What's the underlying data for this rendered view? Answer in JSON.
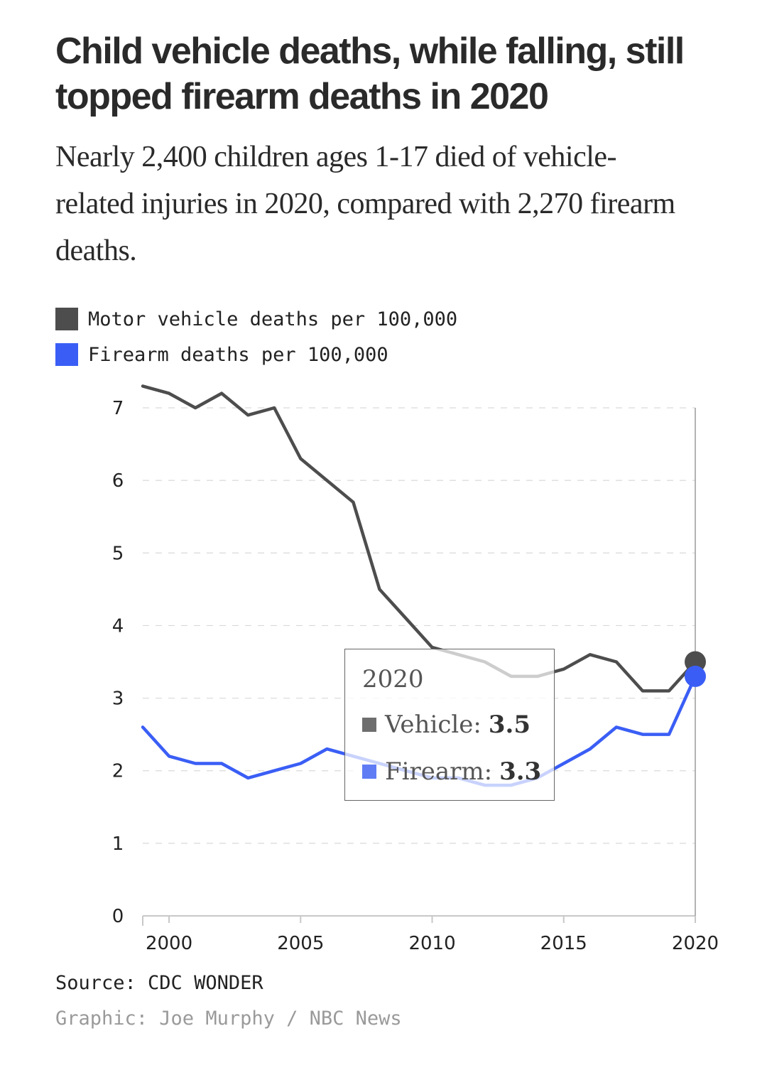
{
  "title": "Child vehicle deaths, while falling, still topped firearm deaths in 2020",
  "subtitle": "Nearly 2,400 children ages 1-17 died of vehicle-related injuries in 2020, compared with 2,270 firearm deaths.",
  "legend": [
    {
      "label": "Motor vehicle deaths per 100,000",
      "color": "#4d4d4d"
    },
    {
      "label": "Firearm deaths per 100,000",
      "color": "#3a5ef5"
    }
  ],
  "chart_data": {
    "type": "line",
    "x": [
      1999,
      2000,
      2001,
      2002,
      2003,
      2004,
      2005,
      2006,
      2007,
      2008,
      2009,
      2010,
      2011,
      2012,
      2013,
      2014,
      2015,
      2016,
      2017,
      2018,
      2019,
      2020
    ],
    "series": [
      {
        "name": "Motor vehicle deaths per 100,000",
        "color": "#4d4d4d",
        "values": [
          7.3,
          7.2,
          7.0,
          7.2,
          6.9,
          7.0,
          6.3,
          6.0,
          5.7,
          4.5,
          4.1,
          3.7,
          3.6,
          3.5,
          3.3,
          3.3,
          3.4,
          3.6,
          3.5,
          3.1,
          3.1,
          3.5
        ]
      },
      {
        "name": "Firearm deaths per 100,000",
        "color": "#3a5ef5",
        "values": [
          2.6,
          2.2,
          2.1,
          2.1,
          1.9,
          2.0,
          2.1,
          2.3,
          2.2,
          2.1,
          2.0,
          1.9,
          1.9,
          1.8,
          1.8,
          1.9,
          2.1,
          2.3,
          2.6,
          2.5,
          2.5,
          3.3
        ]
      }
    ],
    "xticks": [
      2000,
      2005,
      2010,
      2015,
      2020
    ],
    "xtick_labels": [
      "2000",
      "2005",
      "2010",
      "2015",
      "2020"
    ],
    "yticks": [
      0,
      1,
      2,
      3,
      4,
      5,
      6,
      7
    ],
    "ytick_labels": [
      "0",
      "1",
      "2",
      "3",
      "4",
      "5",
      "6",
      "7"
    ],
    "xlim": [
      1999,
      2020
    ],
    "ylim": [
      0,
      7
    ],
    "grid": true,
    "highlight_x": 2020,
    "tooltip": {
      "year": "2020",
      "rows": [
        {
          "label": "Vehicle:",
          "value": "3.5",
          "color": "#6e6e6e"
        },
        {
          "label": "Firearm:",
          "value": "3.3",
          "color": "#5f7cf5"
        }
      ]
    }
  },
  "source": "Source: CDC WONDER",
  "credit": "Graphic: Joe Murphy / NBC News"
}
